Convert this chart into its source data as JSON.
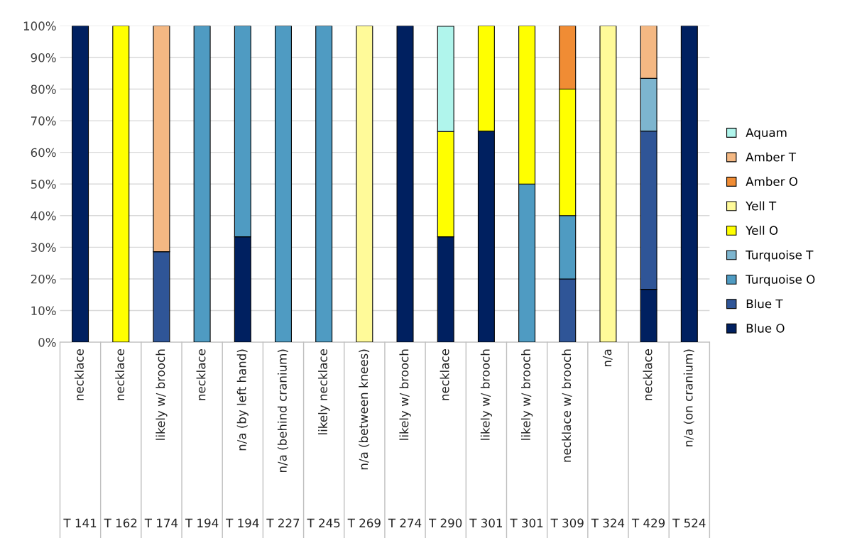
{
  "chart_data": {
    "type": "bar",
    "stacked": true,
    "categories": [
      "necklace\nT 141",
      "necklace\nT 162",
      "likely w/ brooch\nT 174",
      "necklace\nT 194",
      "n/a (by left hand)\nT 194",
      "n/a (behind cranium)\nT 227",
      "likely necklace\nT 245",
      "n/a (between knees)\nT 269",
      "likely w/ brooch\nT 274",
      "necklace\nT 290",
      "likely w/ brooch\nT 301",
      "likely w/ brooch\nT 301",
      "necklace w/ brooch\nT 309",
      "n/a\nT 324",
      "necklace\nT 429",
      "n/a (on cranium)\nT 524"
    ],
    "series": [
      {
        "name": "Blue O",
        "color": "#002060",
        "values": [
          100,
          0,
          0,
          0,
          33.3,
          0,
          0,
          0,
          100,
          33.3,
          66.7,
          0,
          0,
          0,
          16.7,
          100
        ]
      },
      {
        "name": "Blue T",
        "color": "#2f5597",
        "values": [
          0,
          0,
          28.6,
          0,
          0,
          0,
          0,
          0,
          0,
          0,
          0,
          0,
          20,
          0,
          50,
          0
        ]
      },
      {
        "name": "Turquoise O",
        "color": "#4f9bc2",
        "values": [
          0,
          0,
          0,
          100,
          66.7,
          100,
          100,
          0,
          0,
          0,
          0,
          50,
          20,
          0,
          0,
          0
        ]
      },
      {
        "name": "Turquoise T",
        "color": "#7db5cf",
        "values": [
          0,
          0,
          0,
          0,
          0,
          0,
          0,
          0,
          0,
          0,
          0,
          0,
          0,
          0,
          16.7,
          0
        ]
      },
      {
        "name": "Yell O",
        "color": "#ffff00",
        "values": [
          0,
          100,
          0,
          0,
          0,
          0,
          0,
          0,
          0,
          33.3,
          33.3,
          50,
          40,
          0,
          0,
          0
        ]
      },
      {
        "name": "Yell T",
        "color": "#fffa99",
        "values": [
          0,
          0,
          0,
          0,
          0,
          0,
          0,
          100,
          0,
          0,
          0,
          0,
          0,
          100,
          0,
          0
        ]
      },
      {
        "name": "Amber O",
        "color": "#f08c34",
        "values": [
          0,
          0,
          0,
          0,
          0,
          0,
          0,
          0,
          0,
          0,
          0,
          0,
          20,
          0,
          0,
          0
        ]
      },
      {
        "name": "Amber T",
        "color": "#f4b883",
        "values": [
          0,
          0,
          71.4,
          0,
          0,
          0,
          0,
          0,
          0,
          0,
          0,
          0,
          0,
          0,
          16.7,
          0
        ]
      },
      {
        "name": "Aquam",
        "color": "#b0f5ec",
        "values": [
          0,
          0,
          0,
          0,
          0,
          0,
          0,
          0,
          0,
          33.3,
          0,
          0,
          0,
          0,
          0,
          0
        ]
      }
    ],
    "ylim": [
      0,
      100
    ],
    "yticks": [
      {
        "value": 0,
        "label": "0%"
      },
      {
        "value": 10,
        "label": "10%"
      },
      {
        "value": 20,
        "label": "20%"
      },
      {
        "value": 30,
        "label": "30%"
      },
      {
        "value": 40,
        "label": "40%"
      },
      {
        "value": 50,
        "label": "50%"
      },
      {
        "value": 60,
        "label": "60%"
      },
      {
        "value": 70,
        "label": "70%"
      },
      {
        "value": 80,
        "label": "80%"
      },
      {
        "value": 90,
        "label": "90%"
      },
      {
        "value": 100,
        "label": "100%"
      }
    ],
    "grid": "y",
    "legend": "right"
  }
}
